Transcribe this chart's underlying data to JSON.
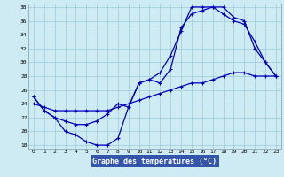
{
  "line1_x": [
    0,
    1,
    2,
    3,
    4,
    5,
    6,
    7,
    8,
    9,
    10,
    11,
    12,
    13,
    14,
    15,
    16,
    17,
    18,
    19,
    20,
    21,
    22,
    23
  ],
  "line1_y": [
    25,
    23,
    22,
    20,
    19.5,
    18.5,
    18,
    18,
    19,
    23.5,
    27,
    27.5,
    28.5,
    31,
    34.5,
    38,
    38,
    38,
    37,
    36,
    35.5,
    33,
    30,
    28
  ],
  "line2_x": [
    0,
    1,
    2,
    3,
    4,
    5,
    6,
    7,
    8,
    9,
    10,
    11,
    12,
    13,
    14,
    15,
    16,
    17,
    18,
    19,
    20,
    21,
    22,
    23
  ],
  "line2_y": [
    25,
    23,
    22,
    21.5,
    21,
    21,
    21.5,
    22.5,
    24,
    23.5,
    27,
    27.5,
    27,
    29,
    35,
    37,
    37.5,
    38,
    38,
    36.5,
    36,
    32,
    30,
    28
  ],
  "line3_x": [
    0,
    1,
    2,
    3,
    4,
    5,
    6,
    7,
    8,
    9,
    10,
    11,
    12,
    13,
    14,
    15,
    16,
    17,
    18,
    19,
    20,
    21,
    22,
    23
  ],
  "line3_y": [
    24,
    23.5,
    23,
    23,
    23,
    23,
    23,
    23,
    23.5,
    24,
    24.5,
    25,
    25.5,
    26,
    26.5,
    27,
    27,
    27.5,
    28,
    28.5,
    28.5,
    28,
    28,
    28
  ],
  "line_color": "#0000bb",
  "marker": "+",
  "marker_size": 3,
  "lw": 0.9,
  "bg_color": "#ceeaf2",
  "grid_color": "#99ccdd",
  "xlabel": "Graphe des températures (°C)",
  "xlabel_bg": "#3355aa",
  "xlabel_color": "#ffffff",
  "xlabel_fontsize": 6.0,
  "tick_fontsize": 4.5,
  "xlim": [
    -0.5,
    23.5
  ],
  "ylim": [
    17.5,
    38.5
  ],
  "yticks": [
    18,
    20,
    22,
    24,
    26,
    28,
    30,
    32,
    34,
    36,
    38
  ],
  "xticks": [
    0,
    1,
    2,
    3,
    4,
    5,
    6,
    7,
    8,
    9,
    10,
    11,
    12,
    13,
    14,
    15,
    16,
    17,
    18,
    19,
    20,
    21,
    22,
    23
  ]
}
